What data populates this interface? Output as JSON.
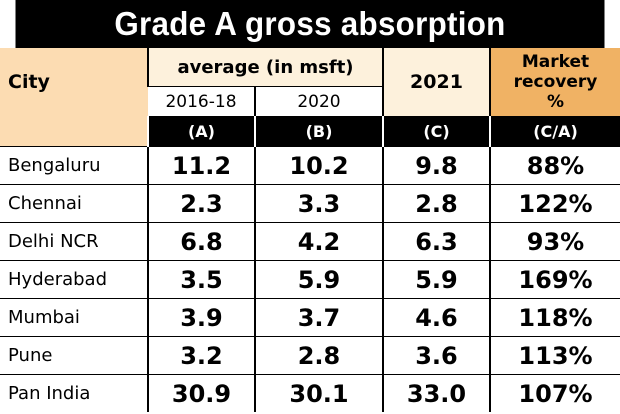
{
  "title": "Grade A gross absorption",
  "header": {
    "city": "City",
    "average": "average (in msft)",
    "col_a_year": "2016-18",
    "col_b_year": "2020",
    "col_c_year": "2021",
    "col_d": [
      "Market",
      "recovery",
      "%"
    ],
    "labels": [
      "(A)",
      "(B)",
      "(C)",
      "(C/A)"
    ]
  },
  "rows": [
    {
      "city": "Bengaluru",
      "a": "11.2",
      "b": "10.2",
      "c": "9.8",
      "d": "88%"
    },
    {
      "city": "Chennai",
      "a": "2.3",
      "b": "3.3",
      "c": "2.8",
      "d": "122%"
    },
    {
      "city": "Delhi NCR",
      "a": "6.8",
      "b": "4.2",
      "c": "6.3",
      "d": "93%"
    },
    {
      "city": "Hyderabad",
      "a": "3.5",
      "b": "5.9",
      "c": "5.9",
      "d": "169%"
    },
    {
      "city": "Mumbai",
      "a": "3.9",
      "b": "3.7",
      "c": "4.6",
      "d": "118%"
    },
    {
      "city": "Pune",
      "a": "3.2",
      "b": "2.8",
      "c": "3.6",
      "d": "113%"
    },
    {
      "city": "Pan India",
      "a": "30.9",
      "b": "30.1",
      "c": "33.0",
      "d": "107%"
    }
  ]
}
